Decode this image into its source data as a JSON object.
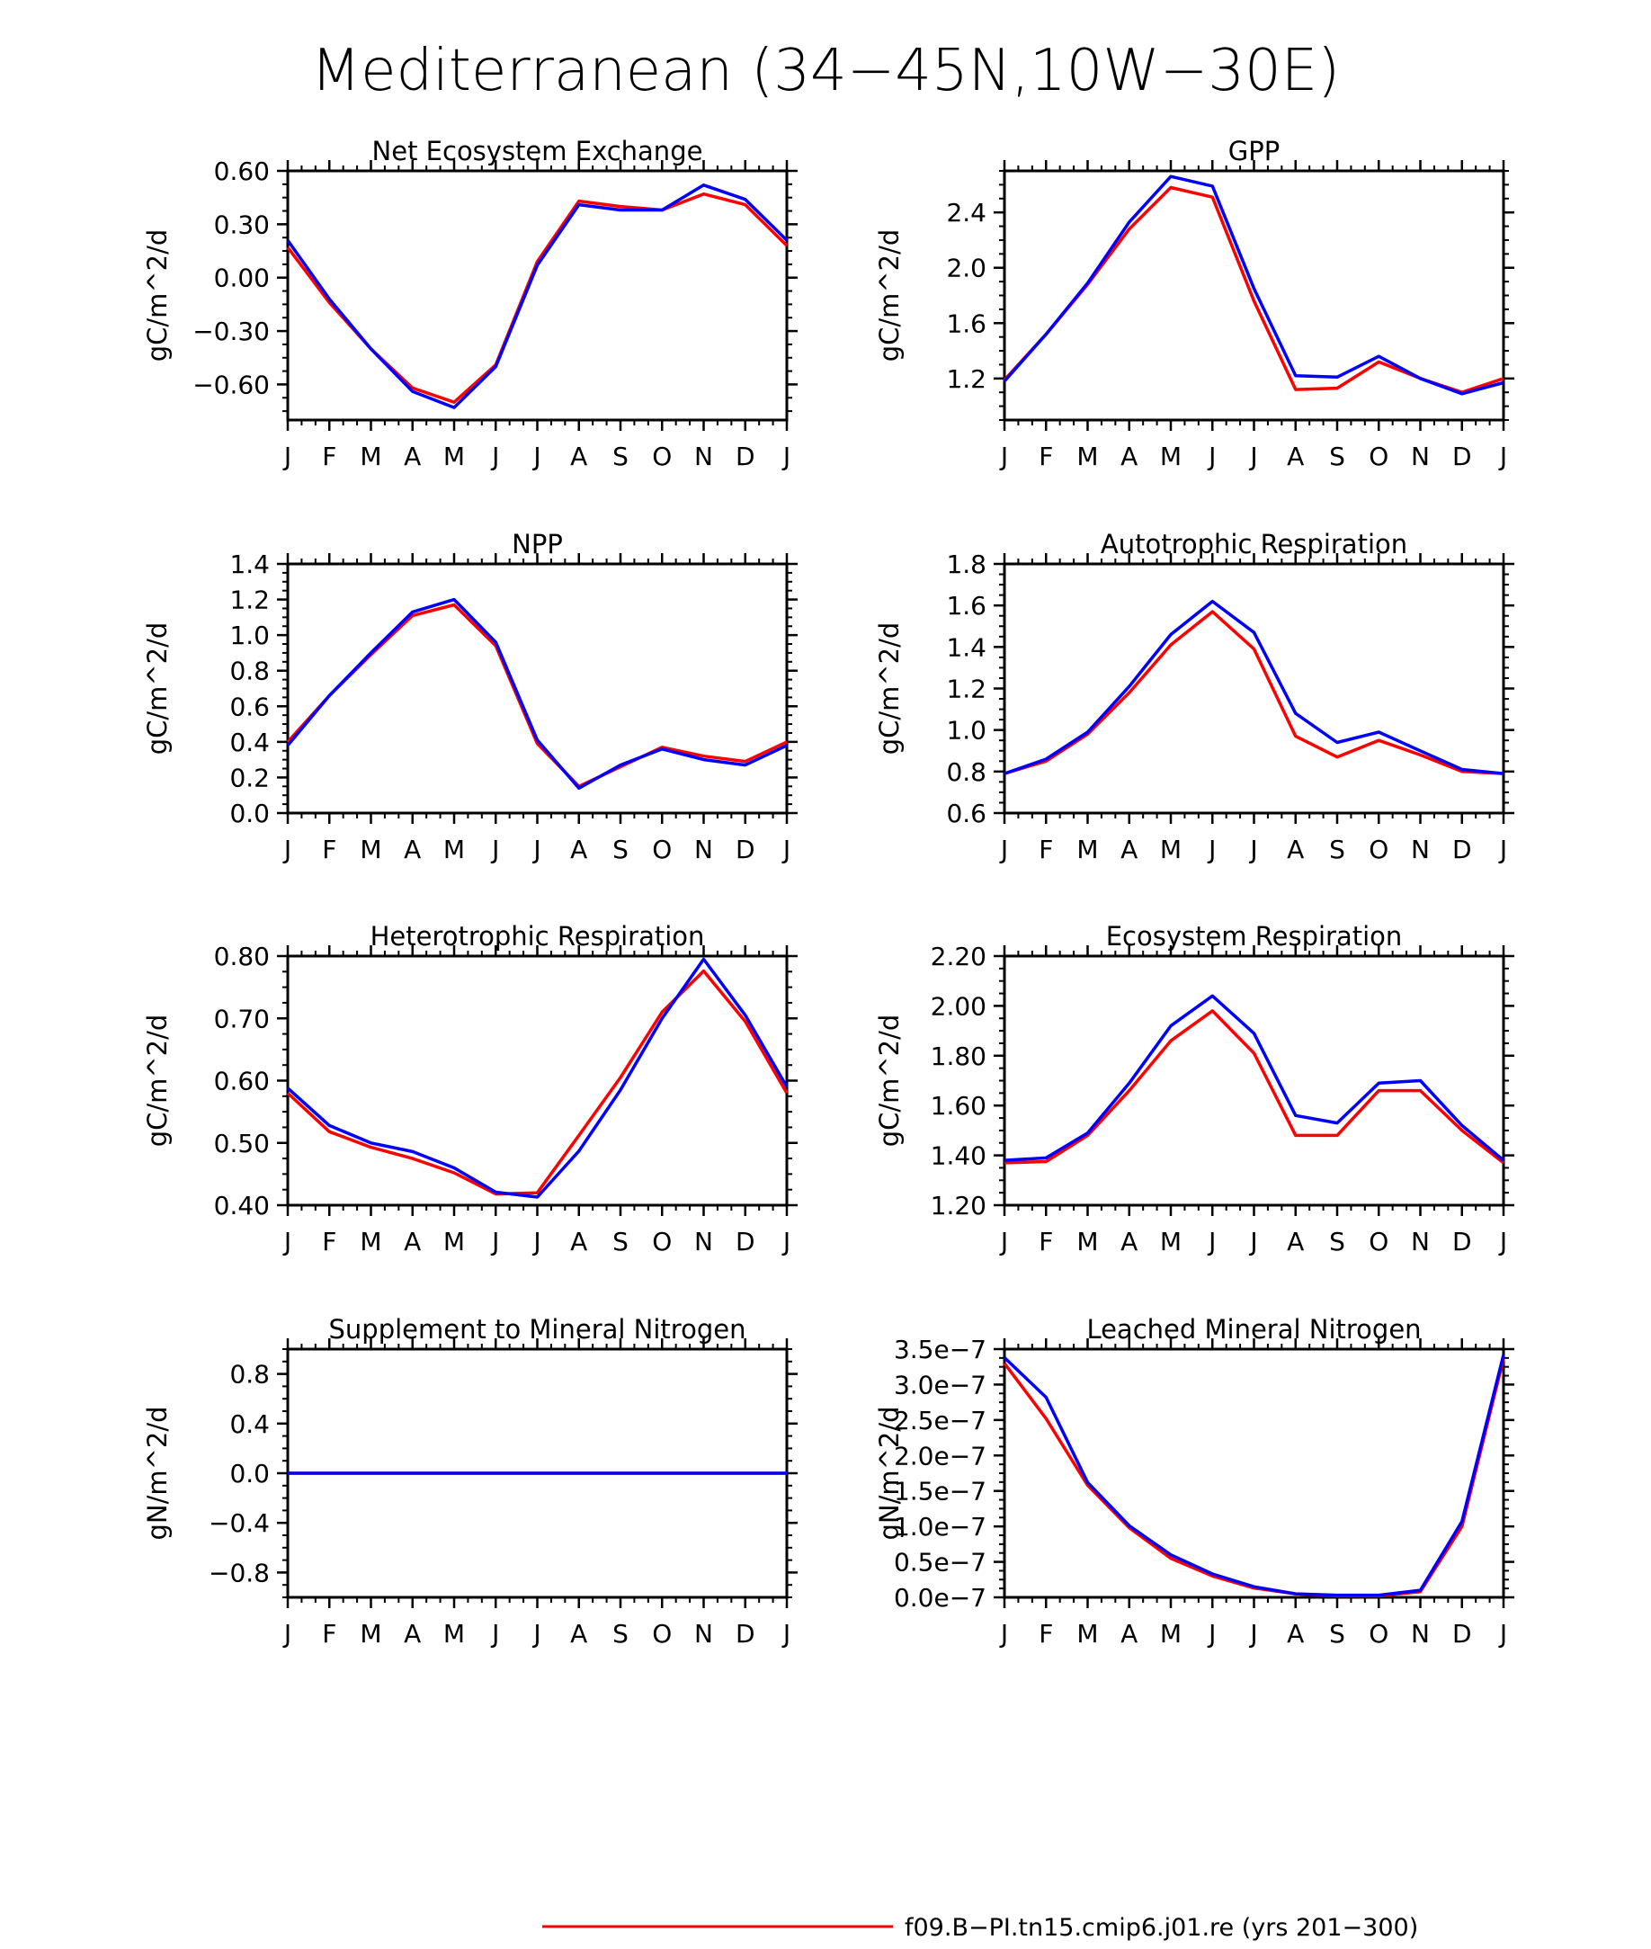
{
  "figure": {
    "title": "Mediterranean (34−45N,10W−30E)",
    "month_labels": [
      "J",
      "F",
      "M",
      "A",
      "M",
      "J",
      "J",
      "A",
      "S",
      "O",
      "N",
      "D",
      "J"
    ],
    "legend": [
      {
        "label": "f09.B−PI.tn15.cmip6.j01.re (yrs 201−300)",
        "color": "#ff0000"
      }
    ]
  },
  "colors": {
    "red": "#ff0000",
    "blue": "#0000ff",
    "axis": "#000000"
  },
  "chart_data": [
    {
      "type": "line",
      "title": "Net Ecosystem Exchange",
      "ylabel": "gC/m^2/d",
      "ylim": [
        -0.8,
        0.6
      ],
      "yticks": [
        0.6,
        0.3,
        0.0,
        -0.3,
        -0.6
      ],
      "ytick_labels": [
        "0.60",
        "0.30",
        "0.00",
        "−0.30",
        "−0.60"
      ],
      "categories": [
        "J",
        "F",
        "M",
        "A",
        "M",
        "J",
        "J",
        "A",
        "S",
        "O",
        "N",
        "D",
        "J"
      ],
      "series": [
        {
          "color": "#ff0000",
          "values": [
            0.17,
            -0.14,
            -0.4,
            -0.62,
            -0.7,
            -0.49,
            0.09,
            0.43,
            0.4,
            0.38,
            0.47,
            0.41,
            0.18
          ]
        },
        {
          "color": "#0000ff",
          "values": [
            0.21,
            -0.12,
            -0.4,
            -0.64,
            -0.73,
            -0.5,
            0.07,
            0.41,
            0.38,
            0.38,
            0.52,
            0.44,
            0.21
          ]
        }
      ]
    },
    {
      "type": "line",
      "title": "GPP",
      "ylabel": "gC/m^2/d",
      "ylim": [
        0.9,
        2.7
      ],
      "yticks": [
        1.2,
        1.6,
        2.0,
        2.4
      ],
      "ytick_labels": [
        "1.2",
        "1.6",
        "2.0",
        "2.4"
      ],
      "categories": [
        "J",
        "F",
        "M",
        "A",
        "M",
        "J",
        "J",
        "A",
        "S",
        "O",
        "N",
        "D",
        "J"
      ],
      "series": [
        {
          "color": "#ff0000",
          "values": [
            1.19,
            1.52,
            1.88,
            2.28,
            2.58,
            2.51,
            1.76,
            1.12,
            1.13,
            1.32,
            1.2,
            1.1,
            1.2
          ]
        },
        {
          "color": "#0000ff",
          "values": [
            1.18,
            1.52,
            1.89,
            2.33,
            2.66,
            2.59,
            1.85,
            1.22,
            1.21,
            1.36,
            1.2,
            1.09,
            1.17
          ]
        }
      ]
    },
    {
      "type": "line",
      "title": "NPP",
      "ylabel": "gC/m^2/d",
      "ylim": [
        0.0,
        1.4
      ],
      "yticks": [
        0.0,
        0.2,
        0.4,
        0.6,
        0.8,
        1.0,
        1.2,
        1.4
      ],
      "ytick_labels": [
        "0.0",
        "0.2",
        "0.4",
        "0.6",
        "0.8",
        "1.0",
        "1.2",
        "1.4"
      ],
      "categories": [
        "J",
        "F",
        "M",
        "A",
        "M",
        "J",
        "J",
        "A",
        "S",
        "O",
        "N",
        "D",
        "J"
      ],
      "series": [
        {
          "color": "#ff0000",
          "values": [
            0.4,
            0.66,
            0.89,
            1.11,
            1.17,
            0.94,
            0.39,
            0.15,
            0.26,
            0.37,
            0.32,
            0.29,
            0.4
          ]
        },
        {
          "color": "#0000ff",
          "values": [
            0.38,
            0.66,
            0.9,
            1.13,
            1.2,
            0.96,
            0.41,
            0.14,
            0.27,
            0.36,
            0.3,
            0.27,
            0.38
          ]
        }
      ]
    },
    {
      "type": "line",
      "title": "Autotrophic Respiration",
      "ylabel": "gC/m^2/d",
      "ylim": [
        0.6,
        1.8
      ],
      "yticks": [
        0.6,
        0.8,
        1.0,
        1.2,
        1.4,
        1.6,
        1.8
      ],
      "ytick_labels": [
        "0.6",
        "0.8",
        "1.0",
        "1.2",
        "1.4",
        "1.6",
        "1.8"
      ],
      "categories": [
        "J",
        "F",
        "M",
        "A",
        "M",
        "J",
        "J",
        "A",
        "S",
        "O",
        "N",
        "D",
        "J"
      ],
      "series": [
        {
          "color": "#ff0000",
          "values": [
            0.79,
            0.85,
            0.98,
            1.18,
            1.41,
            1.57,
            1.39,
            0.97,
            0.87,
            0.95,
            0.88,
            0.8,
            0.79
          ]
        },
        {
          "color": "#0000ff",
          "values": [
            0.79,
            0.86,
            0.99,
            1.21,
            1.46,
            1.62,
            1.47,
            1.08,
            0.94,
            0.99,
            0.9,
            0.81,
            0.79
          ]
        }
      ]
    },
    {
      "type": "line",
      "title": "Heterotrophic Respiration",
      "ylabel": "gC/m^2/d",
      "ylim": [
        0.4,
        0.8
      ],
      "yticks": [
        0.4,
        0.5,
        0.6,
        0.7,
        0.8
      ],
      "ytick_labels": [
        "0.40",
        "0.50",
        "0.60",
        "0.70",
        "0.80"
      ],
      "categories": [
        "J",
        "F",
        "M",
        "A",
        "M",
        "J",
        "J",
        "A",
        "S",
        "O",
        "N",
        "D",
        "J"
      ],
      "series": [
        {
          "color": "#ff0000",
          "values": [
            0.58,
            0.518,
            0.493,
            0.475,
            0.452,
            0.418,
            0.42,
            0.512,
            0.605,
            0.71,
            0.776,
            0.695,
            0.58
          ]
        },
        {
          "color": "#0000ff",
          "values": [
            0.588,
            0.528,
            0.5,
            0.486,
            0.46,
            0.421,
            0.413,
            0.487,
            0.585,
            0.7,
            0.795,
            0.705,
            0.59
          ]
        }
      ]
    },
    {
      "type": "line",
      "title": "Ecosystem Respiration",
      "ylabel": "gC/m^2/d",
      "ylim": [
        1.2,
        2.2
      ],
      "yticks": [
        1.2,
        1.4,
        1.6,
        1.8,
        2.0,
        2.2
      ],
      "ytick_labels": [
        "1.20",
        "1.40",
        "1.60",
        "1.80",
        "2.00",
        "2.20"
      ],
      "categories": [
        "J",
        "F",
        "M",
        "A",
        "M",
        "J",
        "J",
        "A",
        "S",
        "O",
        "N",
        "D",
        "J"
      ],
      "series": [
        {
          "color": "#ff0000",
          "values": [
            1.37,
            1.375,
            1.48,
            1.66,
            1.86,
            1.98,
            1.81,
            1.48,
            1.48,
            1.66,
            1.66,
            1.5,
            1.37
          ]
        },
        {
          "color": "#0000ff",
          "values": [
            1.38,
            1.39,
            1.49,
            1.69,
            1.92,
            2.04,
            1.89,
            1.56,
            1.53,
            1.69,
            1.7,
            1.52,
            1.38
          ]
        }
      ]
    },
    {
      "type": "line",
      "title": "Supplement to Mineral Nitrogen",
      "ylabel": "gN/m^2/d",
      "ylim": [
        -1.0,
        1.0
      ],
      "yticks": [
        0.8,
        0.4,
        0.0,
        -0.4,
        -0.8
      ],
      "ytick_labels": [
        "0.8",
        "0.4",
        "0.0",
        "−0.4",
        "−0.8"
      ],
      "categories": [
        "J",
        "F",
        "M",
        "A",
        "M",
        "J",
        "J",
        "A",
        "S",
        "O",
        "N",
        "D",
        "J"
      ],
      "series": [
        {
          "color": "#ff0000",
          "values": [
            0,
            0,
            0,
            0,
            0,
            0,
            0,
            0,
            0,
            0,
            0,
            0,
            0
          ]
        },
        {
          "color": "#0000ff",
          "values": [
            0,
            0,
            0,
            0,
            0,
            0,
            0,
            0,
            0,
            0,
            0,
            0,
            0
          ]
        }
      ]
    },
    {
      "type": "line",
      "title": "Leached Mineral Nitrogen",
      "ylabel": "gN/m^2/d",
      "ylim": [
        0.0,
        3.5e-07
      ],
      "yticks": [
        0.0,
        5e-08,
        1e-07,
        1.5e-07,
        2e-07,
        2.5e-07,
        3e-07,
        3.5e-07
      ],
      "ytick_labels": [
        "0.0e−7",
        "0.5e−7",
        "1.0e−7",
        "1.5e−7",
        "2.0e−7",
        "2.5e−7",
        "3.0e−7",
        "3.5e−7"
      ],
      "categories": [
        "J",
        "F",
        "M",
        "A",
        "M",
        "J",
        "J",
        "A",
        "S",
        "O",
        "N",
        "D",
        "J"
      ],
      "series": [
        {
          "color": "#ff0000",
          "values": [
            3.3e-07,
            2.52e-07,
            1.58e-07,
            9.8e-08,
            5.5e-08,
            3e-08,
            1.3e-08,
            5e-09,
            2e-09,
            2e-09,
            8e-09,
            1e-07,
            3.37e-07
          ]
        },
        {
          "color": "#0000ff",
          "values": [
            3.38e-07,
            2.82e-07,
            1.62e-07,
            1.01e-07,
            6e-08,
            3.3e-08,
            1.5e-08,
            5e-09,
            3e-09,
            3e-09,
            1e-08,
            1.07e-07,
            3.42e-07
          ]
        }
      ]
    }
  ]
}
